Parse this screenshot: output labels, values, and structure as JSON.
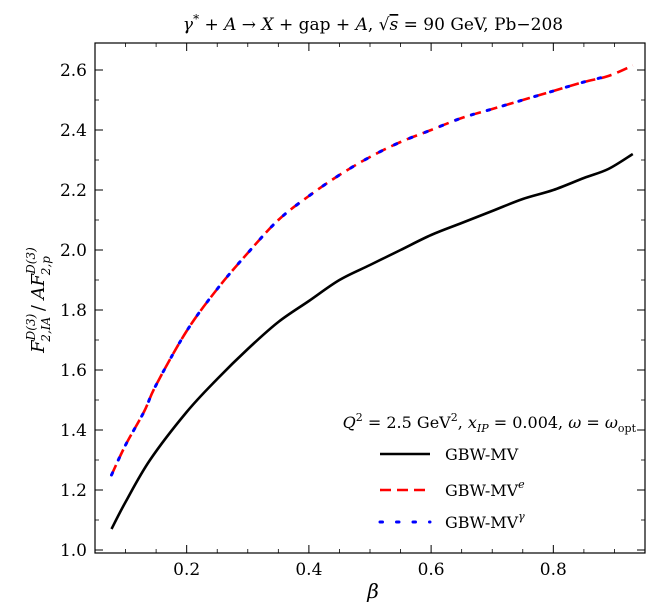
{
  "chart_data": {
    "type": "line",
    "title": "γ* + A → X + gap + A, √s = 90 GeV, Pb−208",
    "xlabel": "β",
    "ylabel": "F₂,IA^D(3) / A F₂,p^D(3)",
    "annotation": "Q² = 2.5 GeV², x_IP = 0.004, ω = ω_opt",
    "xlim": [
      0.05,
      0.95
    ],
    "ylim": [
      0.99,
      2.69
    ],
    "xticks": [
      0.2,
      0.4,
      0.6,
      0.8
    ],
    "yticks": [
      1.0,
      1.2,
      1.4,
      1.6,
      1.8,
      2.0,
      2.2,
      2.4,
      2.6
    ],
    "legend_position": "lower-right",
    "grid": false,
    "series": [
      {
        "name": "GBW-MV",
        "color": "#000000",
        "style": "solid",
        "x": [
          0.077,
          0.1,
          0.14,
          0.2,
          0.25,
          0.3,
          0.35,
          0.4,
          0.45,
          0.5,
          0.55,
          0.6,
          0.65,
          0.7,
          0.75,
          0.8,
          0.85,
          0.89,
          0.93
        ],
        "y": [
          1.07,
          1.16,
          1.3,
          1.46,
          1.57,
          1.67,
          1.76,
          1.83,
          1.9,
          1.95,
          2.0,
          2.05,
          2.09,
          2.13,
          2.17,
          2.2,
          2.24,
          2.27,
          2.32
        ]
      },
      {
        "name": "GBW-MV^e",
        "color": "#ff0000",
        "style": "dashed",
        "x": [
          0.077,
          0.1,
          0.13,
          0.15,
          0.2,
          0.25,
          0.3,
          0.35,
          0.4,
          0.45,
          0.5,
          0.55,
          0.6,
          0.65,
          0.7,
          0.75,
          0.8,
          0.85,
          0.89,
          0.93
        ],
        "y": [
          1.25,
          1.35,
          1.46,
          1.55,
          1.73,
          1.87,
          1.99,
          2.1,
          2.18,
          2.25,
          2.31,
          2.36,
          2.4,
          2.44,
          2.47,
          2.5,
          2.53,
          2.56,
          2.58,
          2.615
        ]
      },
      {
        "name": "GBW-MV^γ",
        "color": "#0000ff",
        "style": "dotted",
        "x": [
          0.077,
          0.1,
          0.13,
          0.15,
          0.2,
          0.25,
          0.3,
          0.35,
          0.4,
          0.45,
          0.5,
          0.55,
          0.6,
          0.65,
          0.7,
          0.75,
          0.8,
          0.85,
          0.89
        ],
        "y": [
          1.25,
          1.35,
          1.46,
          1.55,
          1.73,
          1.87,
          1.99,
          2.1,
          2.18,
          2.25,
          2.31,
          2.36,
          2.4,
          2.44,
          2.47,
          2.5,
          2.53,
          2.56,
          2.58
        ]
      }
    ]
  }
}
